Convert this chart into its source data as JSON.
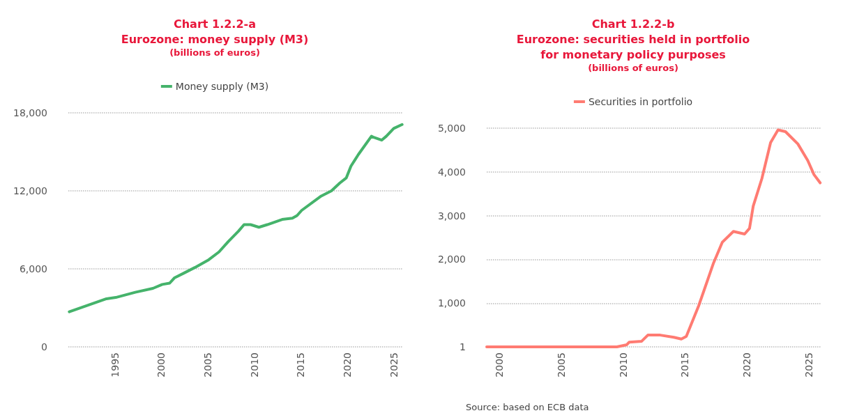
{
  "chart_data": [
    {
      "type": "line",
      "title": "Chart 1.2.2-a\nEurozone: money supply (M3)",
      "subtitle": "(billions of euros)",
      "legend": "top",
      "grid": "y",
      "xlim": [
        1990,
        2026
      ],
      "xticks": [
        1995,
        2000,
        2005,
        2010,
        2015,
        2020,
        2025
      ],
      "ylim": [
        0,
        18000
      ],
      "yticks": [
        0,
        {
          "value": 6000,
          "label": "6,000"
        },
        {
          "value": 12000,
          "label": "12,000"
        },
        {
          "value": 18000,
          "label": "18,000"
        }
      ],
      "series": [
        {
          "name": "Money supply (M3)",
          "color": "#45b36b",
          "x": [
            1990.1,
            1994.1,
            1995.1,
            1997.2,
            1999.1,
            2000.1,
            2000.9,
            2001.4,
            2002.5,
            2003.6,
            2005.1,
            2006.2,
            2007.2,
            2008.3,
            2008.9,
            2009.6,
            2010.5,
            2011.4,
            2013.0,
            2014.1,
            2014.6,
            2015.1,
            2017.2,
            2018.3,
            2019.2,
            2019.9,
            2020.4,
            2021.2,
            2022.6,
            2022.9,
            2023.7,
            2024.2,
            2025.0,
            2025.9
          ],
          "values": [
            2700,
            3700,
            3800,
            4200,
            4500,
            4800,
            4900,
            5300,
            5700,
            6100,
            6700,
            7300,
            8100,
            8900,
            9400,
            9400,
            9200,
            9400,
            9800,
            9900,
            10100,
            10500,
            11600,
            12000,
            12600,
            13000,
            13900,
            14800,
            16200,
            16100,
            15900,
            16200,
            16800,
            17100
          ]
        }
      ]
    },
    {
      "type": "line",
      "title": "Chart 1.2.2-b\nEurozone: securities held in portfolio\nfor monetary policy purposes",
      "subtitle": "(billions of euros)",
      "legend": "top",
      "grid": "y",
      "annotations": [
        "Source: based on ECB data"
      ],
      "xlim": [
        1999,
        2026
      ],
      "xticks": [
        2000,
        2005,
        2010,
        2015,
        2020,
        2025
      ],
      "ylim": [
        1,
        5000
      ],
      "yticks": [
        1,
        {
          "value": 1000,
          "label": "1,000"
        },
        {
          "value": 2000,
          "label": "2,000"
        },
        {
          "value": 3000,
          "label": "3,000"
        },
        {
          "value": 4000,
          "label": "4,000"
        },
        {
          "value": 5000,
          "label": "5,000"
        }
      ],
      "series": [
        {
          "name": "Securities in portfolio",
          "color": "#ff7b72",
          "x": [
            1999.0,
            2009.5,
            2010.3,
            2010.5,
            2011.5,
            2012.0,
            2013.0,
            2014.1,
            2014.7,
            2015.1,
            2016.1,
            2017.3,
            2018.0,
            2018.9,
            2019.8,
            2020.2,
            2020.5,
            2021.2,
            2021.9,
            2022.5,
            2023.1,
            2024.1,
            2024.9,
            2025.4,
            2025.9
          ],
          "values": [
            1,
            1,
            50,
            110,
            130,
            270,
            270,
            220,
            180,
            240,
            940,
            1920,
            2390,
            2640,
            2580,
            2710,
            3220,
            3850,
            4670,
            4960,
            4920,
            4640,
            4260,
            3940,
            3750
          ]
        }
      ]
    }
  ]
}
